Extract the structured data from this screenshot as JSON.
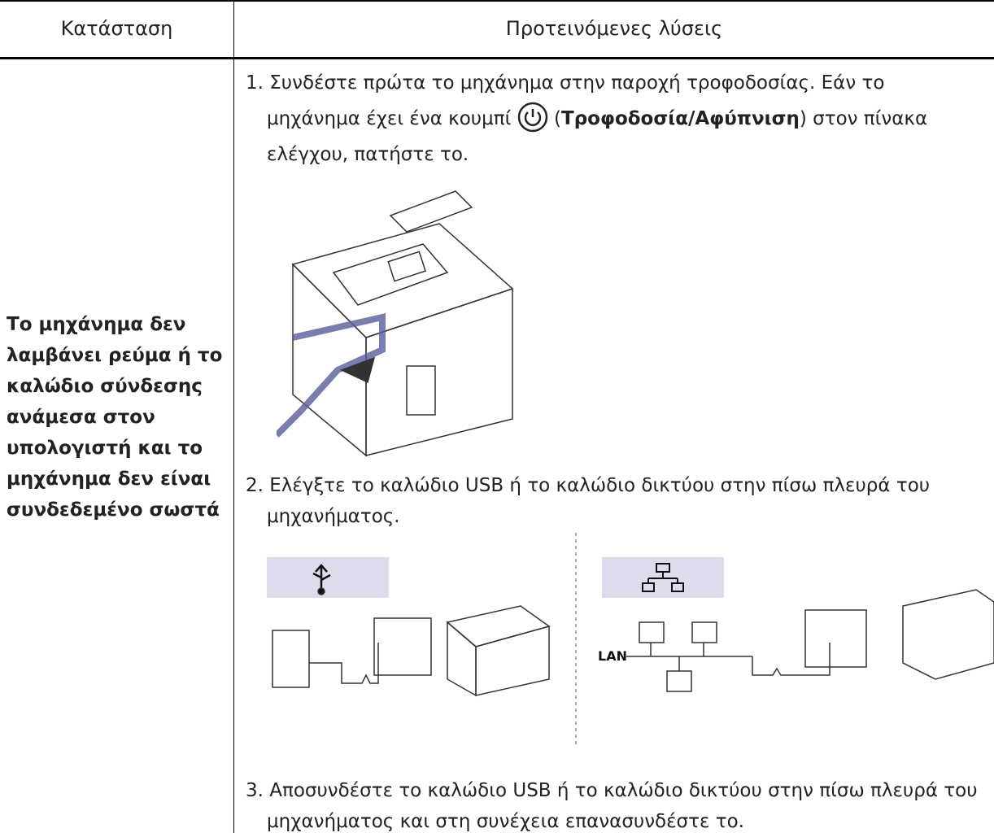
{
  "table": {
    "header": [
      "Κατάσταση",
      "Προτεινόμενες λύσεις"
    ],
    "rows": [
      {
        "condition": "Το μηχάνημα δεν λαμβάνει ρεύμα ή το καλώδιο σύνδεσης ανάμεσα στον υπολογιστή και το μηχάνημα δεν είναι συνδεδεμένο σωστά",
        "steps": [
          {
            "before": "1. Συνδέστε πρώτα το μηχάνημα στην παροχή τροφοδοσίας. Εάν το μηχάνημα έχει ένα κουμπί",
            "open": "(",
            "bold": "Τροφοδοσία/Αφύπνιση",
            "after": ") στον πίνακα ελέγχου, πατήστε το."
          },
          {
            "text": "2. Ελέγξτε το καλώδιο USB ή το καλώδιο δικτύου στην πίσω πλευρά του μηχανήματος.",
            "lan_label": "LAN"
          },
          {
            "text": "3. Αποσυνδέστε το καλώδιο USB ή το καλώδιο δικτύου στην πίσω πλευρά του μηχανήματος και στη συνέχεια επανασυνδέστε το."
          }
        ]
      }
    ]
  }
}
